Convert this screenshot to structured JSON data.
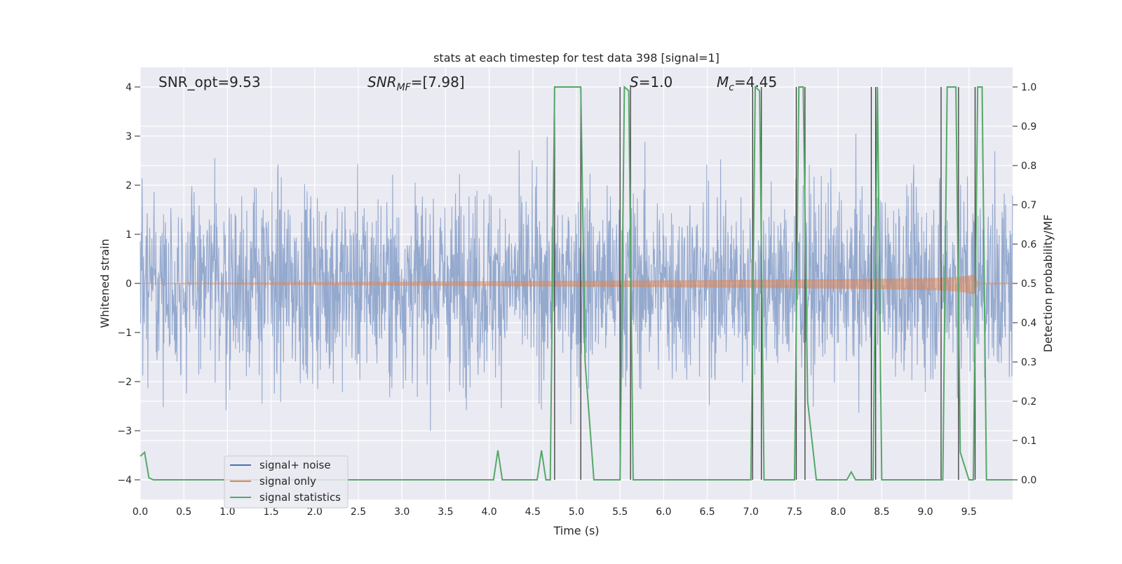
{
  "chart_data": {
    "type": "line",
    "title": "stats at each timestep for test data 398 [signal=1]",
    "xlabel": "Time (s)",
    "ylabel_left": "Whitened strain",
    "ylabel_right": "Detection probability/MF",
    "xlim": [
      0.0,
      10.0
    ],
    "ylim_left": [
      -4.4,
      4.4
    ],
    "ylim_right": [
      -0.05,
      1.05
    ],
    "x_ticks": [
      "0.0",
      "0.5",
      "1.0",
      "1.5",
      "2.0",
      "2.5",
      "3.0",
      "3.5",
      "4.0",
      "4.5",
      "5.0",
      "5.5",
      "6.0",
      "6.5",
      "7.0",
      "7.5",
      "8.0",
      "8.5",
      "9.0",
      "9.5"
    ],
    "y_ticks_left": [
      "−4",
      "−3",
      "−2",
      "−1",
      "0",
      "1",
      "2",
      "3",
      "4"
    ],
    "y_ticks_right": [
      "0.0",
      "0.1",
      "0.2",
      "0.3",
      "0.4",
      "0.5",
      "0.6",
      "0.7",
      "0.8",
      "0.9",
      "1.0"
    ],
    "grid": true,
    "legend_position": "lower-left",
    "annotations": {
      "snr_opt": "SNR_opt=9.53",
      "snr_mf_base": "SNR",
      "snr_mf_sub": "MF",
      "snr_mf_value": "=[7.98]",
      "s_base": "S",
      "s_value": "=1.0",
      "mc_base": "M",
      "mc_sub": "c",
      "mc_value": "=4.45"
    },
    "series": [
      {
        "name": "signal+ noise",
        "color": "#4c72b0",
        "kind": "noise",
        "sigma": 0.95
      },
      {
        "name": "signal only",
        "color": "#dd8452",
        "kind": "chirp",
        "merger_time": 9.6
      },
      {
        "name": "signal statistics",
        "color": "#55a868",
        "kind": "detection",
        "x": [
          0.0,
          0.05,
          0.1,
          0.15,
          4.05,
          4.1,
          4.15,
          4.55,
          4.6,
          4.65,
          4.7,
          4.75,
          4.8,
          5.05,
          5.1,
          5.2,
          5.5,
          5.55,
          5.6,
          5.65,
          5.7,
          7.0,
          7.05,
          7.1,
          7.15,
          7.5,
          7.55,
          7.6,
          7.65,
          7.75,
          7.8,
          8.1,
          8.15,
          8.2,
          8.4,
          8.45,
          8.5,
          9.2,
          9.25,
          9.35,
          9.4,
          9.5,
          9.55,
          9.6,
          9.65,
          9.7,
          9.75,
          10.0
        ],
        "y": [
          0.06,
          0.07,
          0.005,
          0.0,
          0.0,
          0.075,
          0.0,
          0.0,
          0.075,
          0.0,
          0.0,
          1.0,
          1.0,
          1.0,
          0.3,
          0.0,
          0.0,
          1.0,
          0.99,
          0.0,
          0.0,
          0.0,
          1.0,
          0.99,
          0.0,
          0.0,
          1.0,
          1.0,
          0.2,
          0.0,
          0.0,
          0.0,
          0.02,
          0.0,
          0.0,
          1.0,
          0.0,
          0.0,
          1.0,
          1.0,
          0.07,
          0.0,
          0.0,
          1.0,
          1.0,
          0.0,
          0.0,
          0.0
        ]
      }
    ],
    "vertical_lines": {
      "color": "#3a3a3a",
      "x": [
        4.75,
        5.05,
        5.5,
        5.62,
        7.02,
        7.12,
        7.52,
        7.62,
        8.38,
        8.43,
        9.18,
        9.38,
        9.57
      ]
    }
  }
}
